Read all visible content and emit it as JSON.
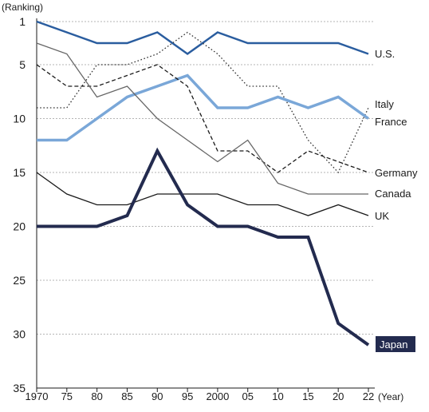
{
  "chart_data": {
    "type": "line",
    "ylabel": "(Ranking)",
    "xlabel": "(Year)",
    "ylim": [
      1,
      35
    ],
    "y_reversed": true,
    "yticks": [
      1,
      5,
      10,
      15,
      20,
      25,
      30,
      35
    ],
    "grid": "horizontal dotted",
    "legend": "inline labels at right end of each series",
    "categories": [
      "1970",
      "75",
      "80",
      "85",
      "90",
      "95",
      "2000",
      "05",
      "10",
      "15",
      "20",
      "22"
    ],
    "series": [
      {
        "name": "U.S.",
        "color": "#2a5d9f",
        "style": "solid",
        "weight": "medium",
        "values": [
          1,
          2,
          3,
          3,
          2,
          4,
          2,
          3,
          3,
          3,
          3,
          4
        ]
      },
      {
        "name": "Italy",
        "color": "#333333",
        "style": "dotted",
        "weight": "thin",
        "values": [
          9,
          9,
          5,
          5,
          4,
          2,
          4,
          7,
          7,
          12,
          15,
          9
        ]
      },
      {
        "name": "France",
        "color": "#7aa7d8",
        "style": "solid",
        "weight": "thick",
        "values": [
          12,
          12,
          10,
          8,
          7,
          6,
          9,
          9,
          8,
          9,
          8,
          10
        ]
      },
      {
        "name": "Germany",
        "color": "#1a1a1a",
        "style": "dashed",
        "weight": "thin",
        "values": [
          5,
          7,
          7,
          6,
          5,
          7,
          13,
          13,
          15,
          13,
          14,
          15
        ]
      },
      {
        "name": "Canada",
        "color": "#666666",
        "style": "solid",
        "weight": "thin",
        "values": [
          3,
          4,
          8,
          7,
          10,
          12,
          14,
          12,
          16,
          17,
          17,
          17
        ]
      },
      {
        "name": "UK",
        "color": "#1a1a1a",
        "style": "solid",
        "weight": "thin",
        "values": [
          15,
          17,
          18,
          18,
          17,
          17,
          17,
          18,
          18,
          19,
          18,
          19
        ]
      },
      {
        "name": "Japan",
        "color": "#232b4f",
        "style": "solid",
        "weight": "bold",
        "highlight": true,
        "values": [
          20,
          20,
          20,
          19,
          13,
          18,
          20,
          20,
          21,
          21,
          29,
          31
        ]
      }
    ]
  }
}
